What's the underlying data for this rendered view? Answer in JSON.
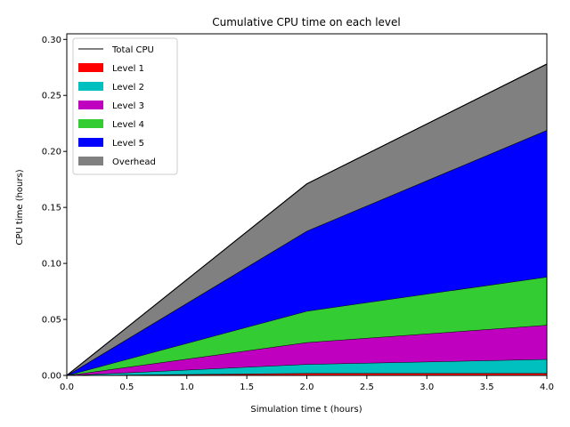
{
  "chart_data": {
    "type": "area",
    "title": "Cumulative CPU time on each level",
    "xlabel": "Simulation time t (hours)",
    "ylabel": "CPU time (hours)",
    "xlim": [
      0,
      4
    ],
    "ylim": [
      0,
      0.305
    ],
    "x": [
      0,
      2,
      4
    ],
    "xticks": [
      0,
      0.5,
      1,
      1.5,
      2,
      2.5,
      3,
      3.5,
      4
    ],
    "xtick_labels": [
      "0.0",
      "0.5",
      "1.0",
      "1.5",
      "2.0",
      "2.5",
      "3.0",
      "3.5",
      "4.0"
    ],
    "yticks": [
      0,
      0.05,
      0.1,
      0.15,
      0.2,
      0.25,
      0.3
    ],
    "ytick_labels": [
      "0.00",
      "0.05",
      "0.10",
      "0.15",
      "0.20",
      "0.25",
      "0.30"
    ],
    "grid": false,
    "legend_position": "top-left",
    "total_line": {
      "name": "Total CPU",
      "color": "#000000",
      "values": [
        0,
        0.171,
        0.278
      ]
    },
    "series": [
      {
        "name": "Level 1",
        "color": "#ff0000",
        "values": [
          0,
          0.002,
          0.002
        ]
      },
      {
        "name": "Level 2",
        "color": "#00bfbf",
        "values": [
          0,
          0.008,
          0.0125
        ]
      },
      {
        "name": "Level 3",
        "color": "#bf00bf",
        "values": [
          0,
          0.0195,
          0.0305
        ]
      },
      {
        "name": "Level 4",
        "color": "#33cc33",
        "values": [
          0,
          0.028,
          0.043
        ]
      },
      {
        "name": "Level 5",
        "color": "#0000ff",
        "values": [
          0,
          0.0715,
          0.131
        ]
      },
      {
        "name": "Overhead",
        "color": "#808080",
        "values": [
          0,
          0.042,
          0.059
        ]
      }
    ]
  }
}
